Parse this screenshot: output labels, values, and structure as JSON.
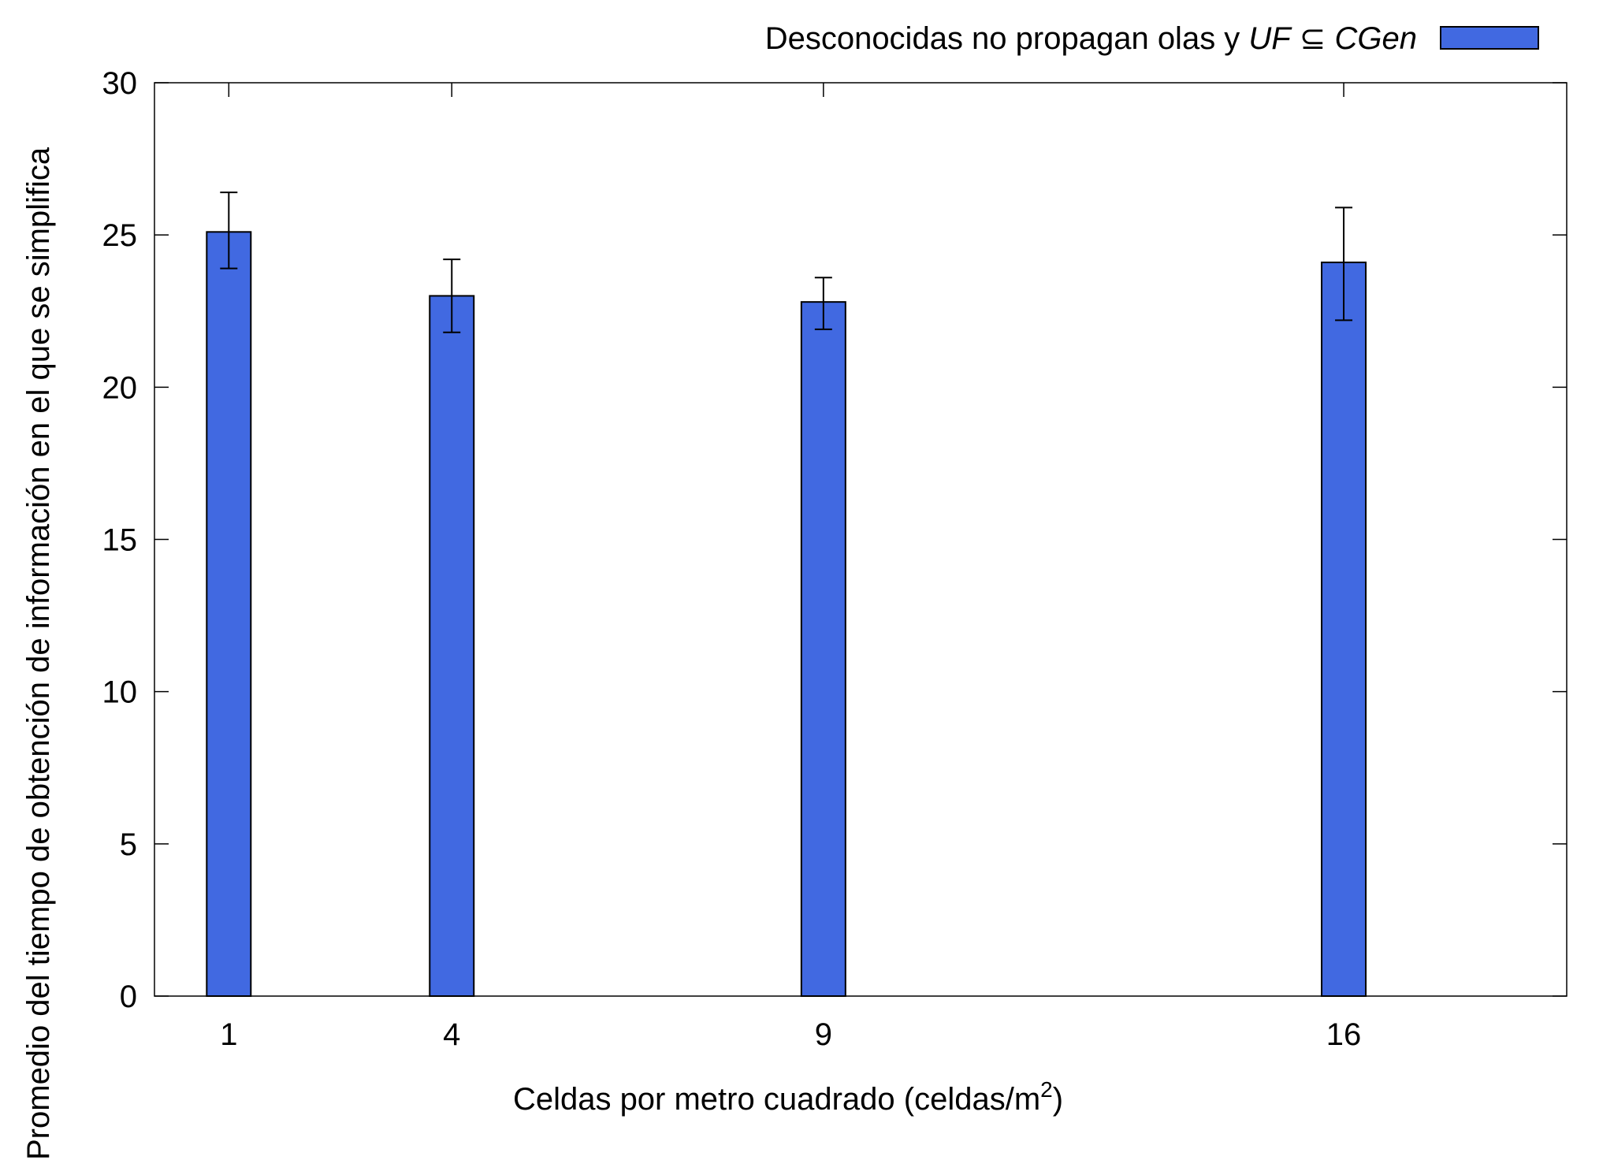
{
  "chart_data": {
    "type": "bar",
    "x": [
      1,
      4,
      9,
      16
    ],
    "x_tick_labels": [
      "1",
      "4",
      "9",
      "16"
    ],
    "y_ticks": [
      0,
      5,
      10,
      15,
      20,
      25,
      30
    ],
    "ylim": [
      0,
      30
    ],
    "xlim": [
      0,
      19
    ],
    "bar_color": "#4169e1",
    "series": [
      {
        "name_parts": {
          "prefix": "Desconocidas no propagan olas y ",
          "italic1": "UF",
          "symbol": " ⊆ ",
          "italic2": "CGen"
        },
        "values": [
          25.1,
          23.0,
          22.8,
          24.1
        ],
        "error_low": [
          23.9,
          21.8,
          21.9,
          22.2
        ],
        "error_high": [
          26.4,
          24.2,
          23.6,
          25.9
        ]
      }
    ],
    "xlabel": {
      "text": "Celdas por metro cuadrado (celdas/m",
      "superscript": "2",
      "suffix": ")"
    },
    "ylabel": "Promedio del tiempo de obtención de información en el que se simplifica",
    "legend_position": "top-right",
    "grid": false
  }
}
